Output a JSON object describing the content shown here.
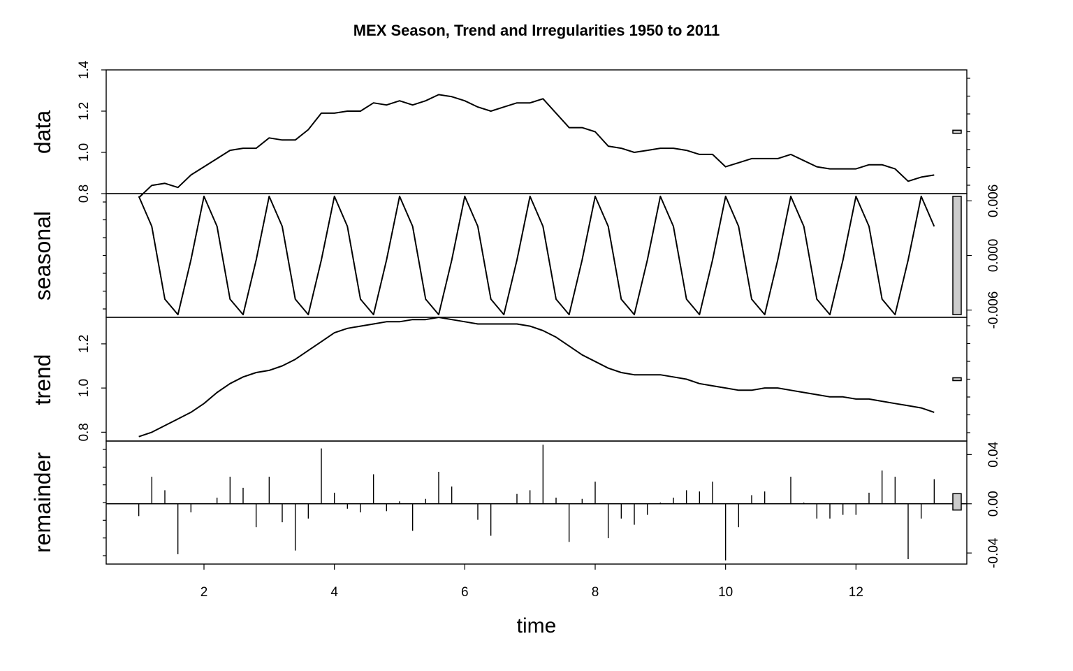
{
  "chart_data": {
    "type": "line",
    "title": "MEX Season, Trend and Irregularities 1950 to 2011",
    "xlabel": "time",
    "xlim": [
      0.5,
      13.7
    ],
    "x_ticks": [
      2,
      4,
      6,
      8,
      10,
      12
    ],
    "x_tick_labels": [
      "2",
      "4",
      "6",
      "8",
      "10",
      "12"
    ],
    "x": [
      1.0,
      1.2,
      1.4,
      1.6,
      1.8,
      2.0,
      2.2,
      2.4,
      2.6,
      2.8,
      3.0,
      3.2,
      3.4,
      3.6,
      3.8,
      4.0,
      4.2,
      4.4,
      4.6,
      4.8,
      5.0,
      5.2,
      5.4,
      5.6,
      5.8,
      6.0,
      6.2,
      6.4,
      6.6,
      6.8,
      7.0,
      7.2,
      7.4,
      7.6,
      7.8,
      8.0,
      8.2,
      8.4,
      8.6,
      8.8,
      9.0,
      9.2,
      9.4,
      9.6,
      9.8,
      10.0,
      10.2,
      10.4,
      10.6,
      10.8,
      11.0,
      11.2,
      11.4,
      11.6,
      11.8,
      12.0,
      12.2,
      12.4,
      12.6,
      12.8,
      13.0,
      13.2
    ],
    "panels": [
      {
        "name": "data",
        "ylim": [
          0.8,
          1.4
        ],
        "y_ticks": [
          0.8,
          1.0,
          1.2,
          1.4
        ],
        "y_tick_labels": [
          "0.8",
          "1.0",
          "1.2",
          "1.4"
        ],
        "axis_side": "left",
        "values": [
          0.78,
          0.84,
          0.85,
          0.83,
          0.89,
          0.93,
          0.97,
          1.01,
          1.02,
          1.02,
          1.07,
          1.06,
          1.06,
          1.11,
          1.19,
          1.19,
          1.2,
          1.2,
          1.24,
          1.23,
          1.25,
          1.23,
          1.25,
          1.28,
          1.27,
          1.25,
          1.22,
          1.2,
          1.22,
          1.24,
          1.24,
          1.26,
          1.19,
          1.12,
          1.12,
          1.1,
          1.03,
          1.02,
          1.0,
          1.01,
          1.02,
          1.02,
          1.01,
          0.99,
          0.99,
          0.93,
          0.95,
          0.97,
          0.97,
          0.97,
          0.99,
          0.96,
          0.93,
          0.92,
          0.92,
          0.92,
          0.94,
          0.94,
          0.92,
          0.86,
          0.88,
          0.89
        ]
      },
      {
        "name": "seasonal",
        "ylim": [
          -0.0068,
          0.0068
        ],
        "y_ticks": [
          -0.006,
          0.0,
          0.006
        ],
        "y_tick_labels": [
          "-0.006",
          "0.000",
          "0.006"
        ],
        "axis_side": "right",
        "values": [
          0.0065,
          0.0032,
          -0.0048,
          -0.0065,
          -0.0005,
          0.0065,
          0.0032,
          -0.0048,
          -0.0065,
          -0.0005,
          0.0065,
          0.0032,
          -0.0048,
          -0.0065,
          -0.0005,
          0.0065,
          0.0032,
          -0.0048,
          -0.0065,
          -0.0005,
          0.0065,
          0.0032,
          -0.0048,
          -0.0065,
          -0.0005,
          0.0065,
          0.0032,
          -0.0048,
          -0.0065,
          -0.0005,
          0.0065,
          0.0032,
          -0.0048,
          -0.0065,
          -0.0005,
          0.0065,
          0.0032,
          -0.0048,
          -0.0065,
          -0.0005,
          0.0065,
          0.0032,
          -0.0048,
          -0.0065,
          -0.0005,
          0.0065,
          0.0032,
          -0.0048,
          -0.0065,
          -0.0005,
          0.0065,
          0.0032,
          -0.0048,
          -0.0065,
          -0.0005,
          0.0065,
          0.0032,
          -0.0048,
          -0.0065,
          -0.0005,
          0.0065,
          0.0032
        ]
      },
      {
        "name": "trend",
        "ylim": [
          0.76,
          1.32
        ],
        "y_ticks": [
          0.8,
          1.0,
          1.2
        ],
        "y_tick_labels": [
          "0.8",
          "1.0",
          "1.2"
        ],
        "axis_side": "left",
        "values": [
          0.78,
          0.8,
          0.83,
          0.86,
          0.89,
          0.93,
          0.98,
          1.02,
          1.05,
          1.07,
          1.08,
          1.1,
          1.13,
          1.17,
          1.21,
          1.25,
          1.27,
          1.28,
          1.29,
          1.3,
          1.3,
          1.31,
          1.31,
          1.32,
          1.31,
          1.3,
          1.29,
          1.29,
          1.29,
          1.29,
          1.28,
          1.26,
          1.23,
          1.19,
          1.15,
          1.12,
          1.09,
          1.07,
          1.06,
          1.06,
          1.06,
          1.05,
          1.04,
          1.02,
          1.01,
          1.0,
          0.99,
          0.99,
          1.0,
          1.0,
          0.99,
          0.98,
          0.97,
          0.96,
          0.96,
          0.95,
          0.95,
          0.94,
          0.93,
          0.92,
          0.91,
          0.89
        ]
      },
      {
        "name": "remainder",
        "ylim": [
          -0.049,
          0.051
        ],
        "y_ticks": [
          -0.04,
          0.0,
          0.04
        ],
        "y_tick_labels": [
          "-0.04",
          "0.00",
          "0.04"
        ],
        "axis_side": "right",
        "values": [
          -0.01,
          0.022,
          0.011,
          -0.041,
          -0.007,
          0.0,
          0.005,
          0.022,
          0.013,
          -0.019,
          0.022,
          -0.015,
          -0.038,
          -0.012,
          0.045,
          0.009,
          -0.004,
          -0.007,
          0.024,
          -0.006,
          0.002,
          -0.022,
          0.004,
          0.026,
          0.014,
          0.0,
          -0.013,
          -0.026,
          0.0,
          0.008,
          0.011,
          0.048,
          0.005,
          -0.031,
          0.004,
          0.018,
          -0.028,
          -0.012,
          -0.017,
          -0.009,
          0.001,
          0.005,
          0.011,
          0.01,
          0.018,
          -0.046,
          -0.019,
          0.007,
          0.01,
          0.0,
          0.022,
          0.001,
          -0.012,
          -0.012,
          -0.009,
          -0.009,
          0.009,
          0.027,
          0.022,
          -0.045,
          -0.012,
          0.02
        ]
      }
    ]
  }
}
